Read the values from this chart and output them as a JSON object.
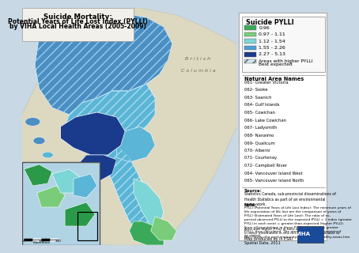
{
  "title_line1": "Suicide Mortality:",
  "title_line2": "Potential Years of Life Lost Index (PYLLI)",
  "title_line3": "by VIHA Local Health Areas (2005-2009)",
  "legend_title": "Suicide PYLLI",
  "legend_items": [
    {
      "label": "0.96",
      "color": "#3aaa5a"
    },
    {
      "label": "0.97 - 1.11",
      "color": "#7acc7a"
    },
    {
      "label": "1.12 - 1.54",
      "color": "#7dd6d6"
    },
    {
      "label": "1.55 - 2.26",
      "color": "#4a9fd4"
    },
    {
      "label": "2.27 - 5.13",
      "color": "#1a3a8c"
    }
  ],
  "legend_hatch_label1": "Areas with higher PYLLI",
  "legend_hatch_label2": "Best expected",
  "health_areas_title": "Natural Area Names",
  "health_areas": [
    "061- Greater Victoria",
    "062- Sooke",
    "063- Saanich",
    "064- Gulf Islands",
    "065- Cowichan",
    "066- Lake Cowichan",
    "067- Ladysmith",
    "068- Nanaimo",
    "069- Qualicum",
    "070- Alberni",
    "071- Courtenay",
    "072- Campbell River",
    "064- Vancouver Island West",
    "065- Vancouver Island North"
  ],
  "outer_bg": "#c8d8e4",
  "water_color": "#b0cfe0",
  "bc_land_color": "#ddd8c0",
  "map_blue_main": "#4a8ec2",
  "map_blue_dark": "#1a3a8c",
  "map_blue_mid": "#5ab5d6",
  "map_cyan": "#7dd6d6",
  "map_green_dark": "#3aaa5a",
  "map_green_med": "#7acc7a",
  "map_hatch_color": "#4a8ec2",
  "legend_bg": "#ffffff",
  "legend_border": "#999999",
  "inset_water": "#b0d4e4",
  "inset_green_dark": "#2a9a4a",
  "inset_cyan": "#7dd6d6",
  "title_box_bg": "#f0f0f0"
}
